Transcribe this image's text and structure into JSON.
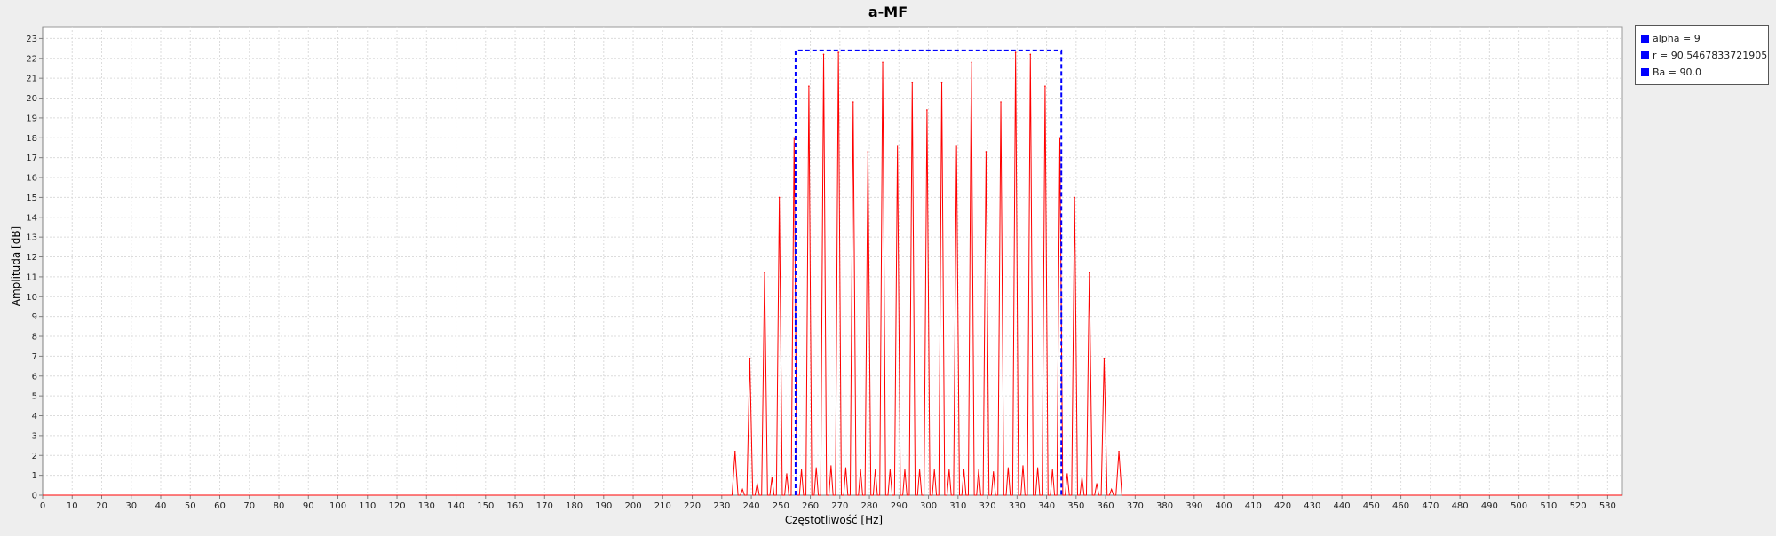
{
  "chart_data": {
    "type": "line",
    "title": "a-MF",
    "xlabel": "Częstotliwość [Hz]",
    "ylabel": "Amplituda [dB]",
    "xlim": [
      0,
      535
    ],
    "ylim": [
      0,
      23.6
    ],
    "xticks": [
      0,
      10,
      20,
      30,
      40,
      50,
      60,
      70,
      80,
      90,
      100,
      110,
      120,
      130,
      140,
      150,
      160,
      170,
      180,
      190,
      200,
      210,
      220,
      230,
      240,
      250,
      260,
      270,
      280,
      290,
      300,
      310,
      320,
      330,
      340,
      350,
      360,
      370,
      380,
      390,
      400,
      410,
      420,
      430,
      440,
      450,
      460,
      470,
      480,
      490,
      500,
      510,
      520,
      530
    ],
    "yticks": [
      0,
      1,
      2,
      3,
      4,
      5,
      6,
      7,
      8,
      9,
      10,
      11,
      12,
      13,
      14,
      15,
      16,
      17,
      18,
      19,
      20,
      21,
      22,
      23
    ],
    "grid": true,
    "legend_position": "right",
    "series": [
      {
        "role": "spectrum",
        "color": "#ff0000",
        "peaks": [
          {
            "x": 234.5,
            "y": 2.2
          },
          {
            "x": 239.5,
            "y": 6.9
          },
          {
            "x": 244.5,
            "y": 11.2
          },
          {
            "x": 249.5,
            "y": 15.0
          },
          {
            "x": 254.5,
            "y": 18.0
          },
          {
            "x": 259.5,
            "y": 20.6
          },
          {
            "x": 264.5,
            "y": 22.2
          },
          {
            "x": 269.5,
            "y": 22.3
          },
          {
            "x": 274.5,
            "y": 19.8
          },
          {
            "x": 279.5,
            "y": 17.3
          },
          {
            "x": 284.5,
            "y": 21.8
          },
          {
            "x": 289.5,
            "y": 17.6
          },
          {
            "x": 294.5,
            "y": 20.8
          },
          {
            "x": 299.5,
            "y": 19.4
          },
          {
            "x": 304.5,
            "y": 20.8
          },
          {
            "x": 309.5,
            "y": 17.6
          },
          {
            "x": 314.5,
            "y": 21.8
          },
          {
            "x": 319.5,
            "y": 17.3
          },
          {
            "x": 324.5,
            "y": 19.8
          },
          {
            "x": 329.5,
            "y": 22.3
          },
          {
            "x": 334.5,
            "y": 22.2
          },
          {
            "x": 339.5,
            "y": 20.6
          },
          {
            "x": 344.5,
            "y": 18.0
          },
          {
            "x": 349.5,
            "y": 15.0
          },
          {
            "x": 354.5,
            "y": 11.2
          },
          {
            "x": 359.5,
            "y": 6.9
          },
          {
            "x": 364.5,
            "y": 2.2
          }
        ],
        "side_peaks": [
          {
            "x": 237,
            "y": 0.3
          },
          {
            "x": 242,
            "y": 0.6
          },
          {
            "x": 247,
            "y": 0.9
          },
          {
            "x": 252,
            "y": 1.1
          },
          {
            "x": 257,
            "y": 1.3
          },
          {
            "x": 262,
            "y": 1.4
          },
          {
            "x": 267,
            "y": 1.5
          },
          {
            "x": 272,
            "y": 1.4
          },
          {
            "x": 277,
            "y": 1.3
          },
          {
            "x": 282,
            "y": 1.3
          },
          {
            "x": 287,
            "y": 1.3
          },
          {
            "x": 292,
            "y": 1.3
          },
          {
            "x": 297,
            "y": 1.3
          },
          {
            "x": 302,
            "y": 1.3
          },
          {
            "x": 307,
            "y": 1.3
          },
          {
            "x": 312,
            "y": 1.3
          },
          {
            "x": 317,
            "y": 1.3
          },
          {
            "x": 322,
            "y": 1.2
          },
          {
            "x": 327,
            "y": 1.4
          },
          {
            "x": 332,
            "y": 1.5
          },
          {
            "x": 337,
            "y": 1.4
          },
          {
            "x": 342,
            "y": 1.3
          },
          {
            "x": 347,
            "y": 1.1
          },
          {
            "x": 352,
            "y": 0.9
          },
          {
            "x": 357,
            "y": 0.6
          },
          {
            "x": 362,
            "y": 0.3
          }
        ]
      },
      {
        "role": "band-rectangle",
        "color": "#0000ff",
        "style": "dashed",
        "x": [
          255,
          255,
          345,
          345
        ],
        "y": [
          0,
          22.4,
          22.4,
          0
        ]
      }
    ],
    "legend": [
      {
        "label": "alpha = 9",
        "color": "#0000ff"
      },
      {
        "label": "r = 90.5467833721905",
        "color": "#0000ff"
      },
      {
        "label": "Ba = 90.0",
        "color": "#0000ff"
      }
    ]
  }
}
